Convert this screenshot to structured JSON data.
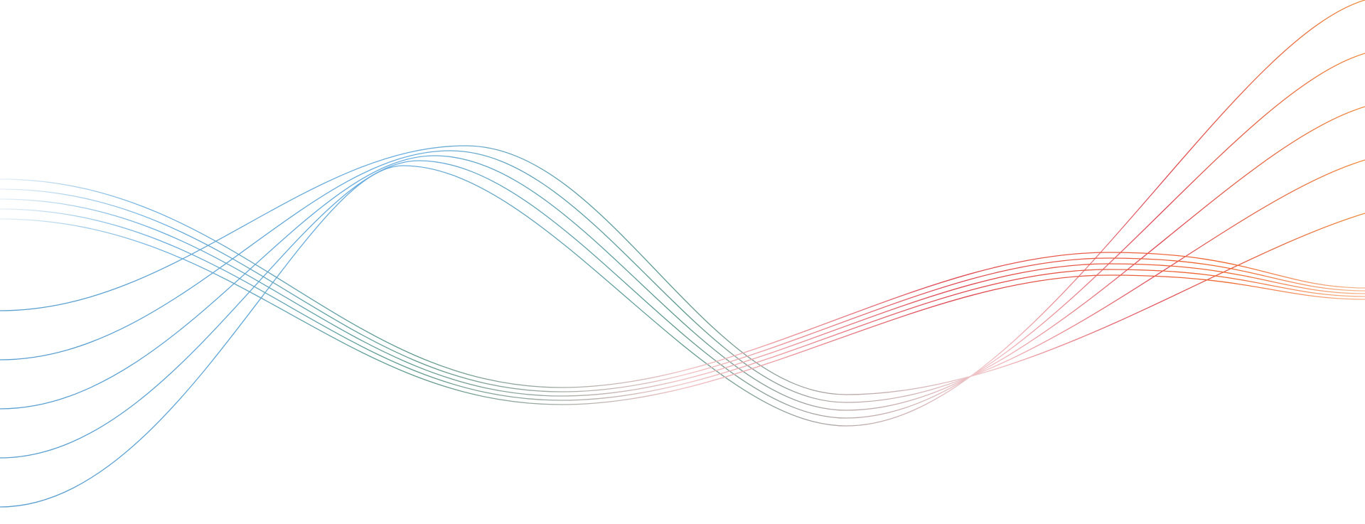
{
  "background": "#ffffff",
  "colors": {
    "start_light": "#cfe4f4",
    "blue": "#5a9fd0",
    "teal": "#5f9a8c",
    "red": "#e04a55",
    "orange": "#f08a3c",
    "faded_red": "#f2c4c8"
  },
  "wave_groups": [
    {
      "name": "rising-waves",
      "count": 5
    },
    {
      "name": "falling-waves",
      "count": 5
    }
  ]
}
